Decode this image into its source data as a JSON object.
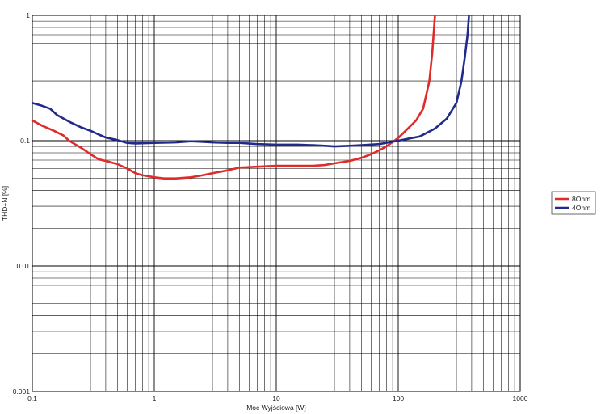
{
  "chart_data": {
    "type": "line",
    "xlabel": "Moc Wyjściowa [W]",
    "ylabel": "THD+N [%]",
    "xscale": "log",
    "yscale": "log",
    "xlim": [
      0.1,
      1000
    ],
    "ylim": [
      0.001,
      1
    ],
    "grid": true,
    "legend_position": "right",
    "x_ticks": [
      "0.1",
      "1",
      "10",
      "100",
      "1000"
    ],
    "y_ticks": [
      "0.001",
      "0.01",
      "0.1",
      "1"
    ],
    "series": [
      {
        "name": "8Ohm",
        "color": "#e02b2b",
        "points": [
          [
            0.1,
            0.145
          ],
          [
            0.12,
            0.132
          ],
          [
            0.15,
            0.12
          ],
          [
            0.18,
            0.11
          ],
          [
            0.2,
            0.1
          ],
          [
            0.25,
            0.088
          ],
          [
            0.3,
            0.078
          ],
          [
            0.35,
            0.071
          ],
          [
            0.4,
            0.069
          ],
          [
            0.5,
            0.065
          ],
          [
            0.6,
            0.06
          ],
          [
            0.7,
            0.055
          ],
          [
            0.8,
            0.053
          ],
          [
            1.0,
            0.051
          ],
          [
            1.2,
            0.05
          ],
          [
            1.5,
            0.05
          ],
          [
            2.0,
            0.051
          ],
          [
            2.5,
            0.053
          ],
          [
            3.0,
            0.055
          ],
          [
            4.0,
            0.058
          ],
          [
            5.0,
            0.061
          ],
          [
            7.0,
            0.062
          ],
          [
            10,
            0.063
          ],
          [
            15,
            0.063
          ],
          [
            20,
            0.063
          ],
          [
            25,
            0.064
          ],
          [
            30,
            0.066
          ],
          [
            40,
            0.069
          ],
          [
            50,
            0.073
          ],
          [
            60,
            0.078
          ],
          [
            70,
            0.084
          ],
          [
            80,
            0.09
          ],
          [
            100,
            0.105
          ],
          [
            120,
            0.125
          ],
          [
            140,
            0.145
          ],
          [
            160,
            0.18
          ],
          [
            180,
            0.3
          ],
          [
            190,
            0.5
          ],
          [
            200,
            1.0
          ]
        ]
      },
      {
        "name": "4Ohm",
        "color": "#1f2a8c",
        "points": [
          [
            0.1,
            0.2
          ],
          [
            0.12,
            0.19
          ],
          [
            0.14,
            0.18
          ],
          [
            0.16,
            0.16
          ],
          [
            0.2,
            0.142
          ],
          [
            0.25,
            0.128
          ],
          [
            0.3,
            0.12
          ],
          [
            0.35,
            0.112
          ],
          [
            0.4,
            0.106
          ],
          [
            0.5,
            0.101
          ],
          [
            0.6,
            0.096
          ],
          [
            0.7,
            0.095
          ],
          [
            1.0,
            0.096
          ],
          [
            1.5,
            0.097
          ],
          [
            2.0,
            0.099
          ],
          [
            3.0,
            0.097
          ],
          [
            4.0,
            0.096
          ],
          [
            5.0,
            0.096
          ],
          [
            7.0,
            0.094
          ],
          [
            10,
            0.093
          ],
          [
            15,
            0.093
          ],
          [
            20,
            0.092
          ],
          [
            25,
            0.091
          ],
          [
            30,
            0.09
          ],
          [
            40,
            0.091
          ],
          [
            50,
            0.092
          ],
          [
            70,
            0.094
          ],
          [
            100,
            0.1
          ],
          [
            150,
            0.108
          ],
          [
            200,
            0.125
          ],
          [
            250,
            0.15
          ],
          [
            300,
            0.2
          ],
          [
            330,
            0.3
          ],
          [
            350,
            0.45
          ],
          [
            370,
            0.7
          ],
          [
            380,
            1.0
          ]
        ]
      }
    ]
  }
}
